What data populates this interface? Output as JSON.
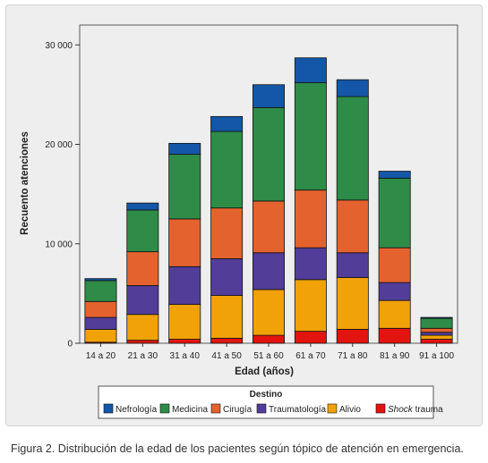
{
  "figure": {
    "caption": "Figura 2. Distribución de la edad de los pacientes según tópico de atención en emergencia."
  },
  "chart_data": {
    "type": "bar",
    "stacked": true,
    "title": "",
    "xlabel": "Edad (años)",
    "ylabel": "Recuento atenciones",
    "ylim": [
      0,
      32000
    ],
    "yticks": [
      0,
      10000,
      20000,
      30000
    ],
    "ytick_labels": [
      "0",
      "10 000",
      "20 000",
      "30 000"
    ],
    "grid": false,
    "legend": {
      "title": "Destino",
      "position": "bottom"
    },
    "categories": [
      "14 a 20",
      "21 a 30",
      "31 a 40",
      "41 a 50",
      "51 a 60",
      "61 a 70",
      "71 a 80",
      "81 a 90",
      "91 a 100"
    ],
    "series": [
      {
        "name": "Shock trauma",
        "color": "#e3140f",
        "values": [
          100,
          300,
          400,
          500,
          800,
          1200,
          1400,
          1500,
          400
        ]
      },
      {
        "name": "Alivio",
        "color": "#f0a208",
        "values": [
          1300,
          2600,
          3500,
          4300,
          4600,
          5200,
          5200,
          2800,
          400
        ]
      },
      {
        "name": "Traumatología",
        "color": "#523d99",
        "values": [
          1200,
          2900,
          3800,
          3700,
          3700,
          3200,
          2500,
          1800,
          300
        ]
      },
      {
        "name": "Cirugía",
        "color": "#e4622e",
        "values": [
          1600,
          3400,
          4800,
          5100,
          5200,
          5800,
          5300,
          3500,
          400
        ]
      },
      {
        "name": "Medicina",
        "color": "#2f8b48",
        "values": [
          2100,
          4200,
          6500,
          7700,
          9400,
          10800,
          10400,
          7000,
          1000
        ]
      },
      {
        "name": "Nefrología",
        "color": "#1457a8",
        "values": [
          200,
          700,
          1100,
          1500,
          2300,
          2500,
          1700,
          700,
          100
        ]
      }
    ],
    "legend_order": [
      "Nefrología",
      "Medicina",
      "Cirugía",
      "Traumatología",
      "Alivio",
      "Shock trauma"
    ]
  }
}
